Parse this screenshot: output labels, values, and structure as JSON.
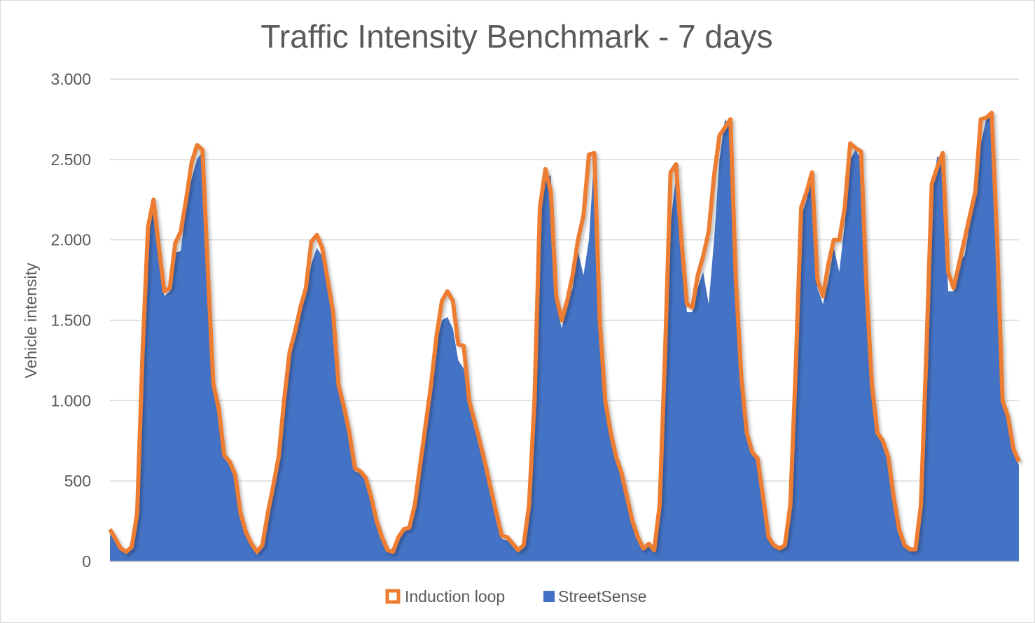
{
  "chart_data": {
    "type": "area",
    "title": "Traffic Intensity Benchmark - 7 days",
    "xlabel": "",
    "ylabel": "Vehicle intensity",
    "ylim": [
      0,
      3000
    ],
    "yticks": [
      0,
      500,
      1000,
      1500,
      2000,
      2500,
      3000
    ],
    "ytick_labels": [
      "0",
      "500",
      "1.000",
      "1.500",
      "2.000",
      "2.500",
      "3.000"
    ],
    "grid": true,
    "legend_position": "bottom",
    "x_description": "hourly samples over 7 days (no tick labels shown)",
    "series": [
      {
        "name": "Induction loop",
        "style": "line",
        "color": "#ED7D31",
        "values": [
          200,
          140,
          80,
          60,
          90,
          300,
          1300,
          2080,
          2250,
          1950,
          1680,
          1700,
          1980,
          2050,
          2250,
          2480,
          2590,
          2560,
          1800,
          1100,
          950,
          660,
          620,
          540,
          300,
          180,
          110,
          60,
          100,
          300,
          470,
          650,
          1000,
          1300,
          1430,
          1580,
          1700,
          1990,
          2030,
          1950,
          1750,
          1550,
          1100,
          960,
          800,
          580,
          560,
          520,
          400,
          250,
          150,
          70,
          60,
          150,
          200,
          210,
          350,
          600,
          850,
          1100,
          1400,
          1620,
          1680,
          1620,
          1350,
          1340,
          1000,
          870,
          740,
          600,
          450,
          300,
          160,
          150,
          110,
          70,
          100,
          350,
          1000,
          2200,
          2440,
          2300,
          1650,
          1500,
          1620,
          1780,
          2000,
          2150,
          2530,
          2540,
          1500,
          1000,
          800,
          650,
          550,
          400,
          250,
          150,
          80,
          110,
          70,
          350,
          1300,
          2420,
          2470,
          2000,
          1600,
          1580,
          1780,
          1900,
          2050,
          2400,
          2650,
          2700,
          2750,
          1750,
          1150,
          800,
          680,
          640,
          400,
          150,
          100,
          80,
          100,
          350,
          1200,
          2200,
          2300,
          2420,
          1750,
          1650,
          1850,
          2000,
          2000,
          2200,
          2600,
          2570,
          2550,
          1700,
          1100,
          800,
          750,
          650,
          400,
          200,
          100,
          75,
          75,
          350,
          1300,
          2350,
          2450,
          2540,
          1800,
          1700,
          1850,
          2000,
          2150,
          2300,
          2750,
          2760,
          2790,
          2000,
          1000,
          900,
          700,
          620
        ]
      },
      {
        "name": "StreetSense",
        "style": "area",
        "color": "#4472C4",
        "values": [
          170,
          120,
          70,
          50,
          80,
          280,
          1250,
          2000,
          2230,
          1900,
          1650,
          1680,
          1920,
          1930,
          2200,
          2380,
          2500,
          2550,
          1750,
          1050,
          920,
          640,
          600,
          520,
          280,
          160,
          100,
          40,
          90,
          280,
          450,
          620,
          950,
          1350,
          1400,
          1550,
          1650,
          1850,
          1950,
          1900,
          1700,
          1500,
          1050,
          940,
          780,
          560,
          550,
          500,
          380,
          230,
          130,
          60,
          55,
          140,
          190,
          200,
          330,
          580,
          820,
          1050,
          1350,
          1500,
          1520,
          1450,
          1250,
          1200,
          960,
          850,
          720,
          580,
          430,
          280,
          140,
          130,
          100,
          60,
          90,
          330,
          950,
          2150,
          2400,
          2400,
          1600,
          1450,
          1600,
          1700,
          1930,
          1780,
          2000,
          2540,
          1450,
          980,
          780,
          630,
          530,
          380,
          230,
          130,
          70,
          100,
          60,
          330,
          1250,
          2100,
          2400,
          1950,
          1550,
          1550,
          1700,
          1800,
          1600,
          2000,
          2500,
          2750,
          2700,
          1700,
          1100,
          780,
          660,
          620,
          380,
          130,
          90,
          70,
          90,
          330,
          1150,
          2150,
          2250,
          2400,
          1700,
          1600,
          1750,
          1950,
          1800,
          2100,
          2500,
          2560,
          2500,
          1650,
          1050,
          780,
          730,
          630,
          380,
          180,
          90,
          70,
          70,
          330,
          1250,
          2300,
          2520,
          2500,
          1680,
          1680,
          1870,
          1900,
          2100,
          2250,
          2600,
          2750,
          2780,
          1950,
          980,
          880,
          680,
          600
        ]
      }
    ]
  }
}
